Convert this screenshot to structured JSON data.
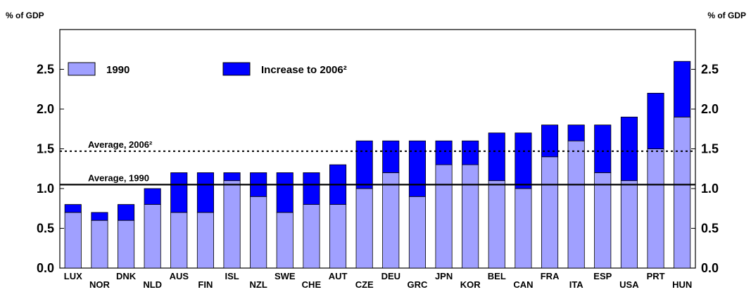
{
  "chart_data": {
    "type": "bar",
    "stacked": true,
    "y_unit_left": "% of GDP",
    "y_unit_right": "% of GDP",
    "ylim": [
      0,
      3.0
    ],
    "yticks": [
      "0.0",
      "0.5",
      "1.0",
      "1.5",
      "2.0",
      "2.5"
    ],
    "ytick_values": [
      0,
      0.5,
      1.0,
      1.5,
      2.0,
      2.5
    ],
    "categories": [
      "LUX",
      "NOR",
      "DNK",
      "NLD",
      "AUS",
      "FIN",
      "ISL",
      "NZL",
      "SWE",
      "CHE",
      "AUT",
      "CZE",
      "DEU",
      "GRC",
      "JPN",
      "KOR",
      "BEL",
      "CAN",
      "FRA",
      "ITA",
      "ESP",
      "USA",
      "PRT",
      "HUN"
    ],
    "highlight_category": "GRC",
    "series": [
      {
        "name": "1990",
        "color": "#a0a0ff",
        "values": [
          0.7,
          0.6,
          0.6,
          0.8,
          0.7,
          0.7,
          1.1,
          0.9,
          0.7,
          0.8,
          0.8,
          1.0,
          1.2,
          0.9,
          1.3,
          1.3,
          1.1,
          1.0,
          1.4,
          1.6,
          1.2,
          1.1,
          1.5,
          1.9
        ]
      },
      {
        "name": "Increase to 2006²",
        "color": "#0000ff",
        "values": [
          0.1,
          0.1,
          0.2,
          0.2,
          0.5,
          0.5,
          0.1,
          0.3,
          0.5,
          0.4,
          0.5,
          0.6,
          0.4,
          0.7,
          0.3,
          0.3,
          0.6,
          0.7,
          0.4,
          0.2,
          0.6,
          0.8,
          0.7,
          0.7
        ]
      }
    ],
    "reference_lines": [
      {
        "label": "Average, 2006²",
        "value": 1.47,
        "style": "dotted"
      },
      {
        "label": "Average, 1990",
        "value": 1.05,
        "style": "solid"
      }
    ],
    "legend_position": "top-left, inside plot",
    "grid": false
  }
}
